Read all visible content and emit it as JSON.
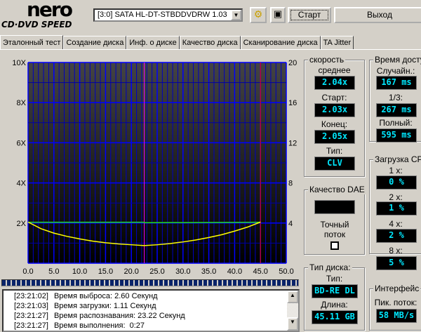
{
  "app": {
    "logo_top": "nero",
    "logo_bottom": "CD·DVD SPEED"
  },
  "toolbar": {
    "drive": "[3:0]  SATA HL-DT-STBDDVDRW 1.03",
    "start": "Старт",
    "exit": "Выход"
  },
  "tabs": [
    {
      "label": "Эталонный тест",
      "active": true
    },
    {
      "label": "Создание диска"
    },
    {
      "label": "Инф. о диске"
    },
    {
      "label": "Качество диска"
    },
    {
      "label": "Сканирование диска"
    },
    {
      "label": "TA Jitter"
    }
  ],
  "speed": {
    "title": "скорость",
    "avg_label": "среднее",
    "avg": "2.04x",
    "start_label": "Старт:",
    "start": "2.03x",
    "end_label": "Конец:",
    "end": "2.05x",
    "type_label": "Тип:",
    "type": "CLV"
  },
  "access": {
    "title": "Время доступа",
    "random_label": "Случайн.:",
    "random": "167 ms",
    "third_label": "1/3:",
    "third": "267 ms",
    "full_label": "Полный:",
    "full": "595 ms"
  },
  "cpu": {
    "title": "Загрузка CPU",
    "x1_label": "1 x:",
    "x1": "0 %",
    "x2_label": "2 x:",
    "x2": "1 %",
    "x4_label": "4 x:",
    "x4": "2 %",
    "x8_label": "8 x:",
    "x8": "5 %"
  },
  "dae": {
    "title": "Качество DAE",
    "value": "",
    "accurate_label": "Точный поток",
    "accurate_checked": false
  },
  "disc": {
    "title": "Тип диска:",
    "type_label": "Тип:",
    "type": "BD-RE DL",
    "length_label": "Длина:",
    "length": "45.11 GB"
  },
  "iface": {
    "title": "Интерфейс",
    "burst_label": "Пик. поток:",
    "burst": "58 MB/s"
  },
  "log": [
    {
      "time": "[23:21:02]",
      "text": "Время выброса: 2.60 Секунд"
    },
    {
      "time": "[23:21:03]",
      "text": "Время загрузки: 1.11 Секунд"
    },
    {
      "time": "[23:21:27]",
      "text": "Время распознавания: 23.22 Секунд"
    },
    {
      "time": "[23:21:27]",
      "text": "Время выполнения:  0:27"
    }
  ],
  "chart_data": {
    "type": "line",
    "xlim": [
      0,
      50
    ],
    "ylim_left": [
      0,
      10
    ],
    "ylim_right": [
      0,
      20
    ],
    "x_ticks": [
      "0.0",
      "5.0",
      "10.0",
      "15.0",
      "20.0",
      "25.0",
      "30.0",
      "35.0",
      "40.0",
      "45.0",
      "50.0"
    ],
    "y_left_ticks": [
      "2X",
      "4X",
      "6X",
      "8X",
      "10X"
    ],
    "y_right_ticks": [
      "4",
      "8",
      "12",
      "16",
      "20"
    ],
    "grid": true,
    "colors": {
      "speed": "#20e020",
      "secondary": "#ffff00",
      "grid": "#0000ff",
      "marker_mid": "#ff00ff",
      "marker_end": "#ff0000"
    },
    "series": [
      {
        "axis": "left",
        "color": "#20e020",
        "x": [
          0,
          22.4,
          22.6,
          45
        ],
        "y": [
          2.04,
          2.04,
          2.02,
          2.04
        ]
      },
      {
        "axis": "left",
        "color": "#ffff00",
        "x": [
          0,
          2.5,
          5,
          7.5,
          10,
          12.5,
          15,
          17.5,
          20,
          22.5,
          25,
          27.5,
          30,
          32.5,
          35,
          37.5,
          40,
          42.5,
          45
        ],
        "y": [
          2.05,
          1.72,
          1.5,
          1.34,
          1.21,
          1.1,
          1.02,
          0.96,
          0.92,
          0.88,
          0.92,
          0.98,
          1.06,
          1.16,
          1.28,
          1.42,
          1.6,
          1.8,
          2.05
        ]
      }
    ],
    "markers_x": [
      22.5,
      45
    ]
  }
}
